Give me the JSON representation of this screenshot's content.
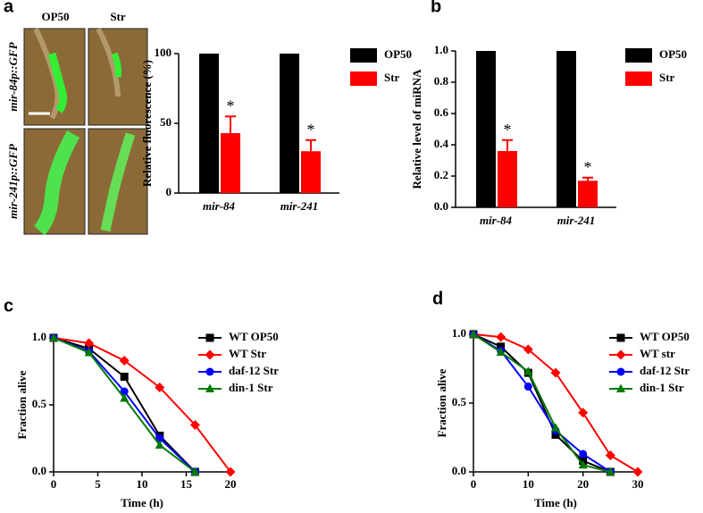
{
  "micrographs": {
    "columns": [
      "OP50",
      "Str"
    ],
    "rows": [
      "mir-84p::GFP",
      "mir-241p::GFP"
    ]
  },
  "chart_data": [
    {
      "type": "bar",
      "panel": "a",
      "ylabel": "Relative fluorescence (%)",
      "categories": [
        "mir-84",
        "mir-241"
      ],
      "ylim": [
        0,
        100
      ],
      "yticks": [
        0,
        50,
        100
      ],
      "series": [
        {
          "name": "OP50",
          "color": "#000000",
          "values": [
            100,
            100
          ]
        },
        {
          "name": "Str",
          "color": "#ff0000",
          "values": [
            43,
            30
          ],
          "errors": [
            12,
            8
          ],
          "significance": [
            "*",
            "*"
          ]
        }
      ]
    },
    {
      "type": "bar",
      "panel": "b",
      "ylabel": "Relative  level of miRNA",
      "categories": [
        "mir-84",
        "mir-241"
      ],
      "ylim": [
        0,
        1
      ],
      "yticks": [
        {
          "value": 0,
          "label": "0.0"
        },
        0.2,
        0.4,
        0.6,
        0.8,
        {
          "value": 1,
          "label": "1.0"
        }
      ],
      "series": [
        {
          "name": "OP50",
          "color": "#000000",
          "values": [
            1,
            1
          ]
        },
        {
          "name": "Str",
          "color": "#ff0000",
          "values": [
            0.36,
            0.17
          ],
          "errors": [
            0.07,
            0.02
          ],
          "significance": [
            "*",
            "*"
          ]
        }
      ]
    },
    {
      "type": "line",
      "panel": "c",
      "xlabel": "Time (h)",
      "ylabel": "Fraction alive",
      "xlim": [
        0,
        20
      ],
      "xticks": [
        0,
        5,
        10,
        15,
        20
      ],
      "ylim": [
        0,
        1
      ],
      "yticks": [
        {
          "value": 0,
          "label": "0.0"
        },
        0.5,
        {
          "value": 1,
          "label": "1.0"
        }
      ],
      "series": [
        {
          "name": "WT OP50",
          "color": "#000000",
          "marker": "square",
          "x": [
            0,
            4,
            8,
            12,
            16
          ],
          "values": [
            1,
            0.92,
            0.71,
            0.27,
            0
          ]
        },
        {
          "name": "WT Str",
          "color": "#ff0000",
          "marker": "diamond",
          "x": [
            0,
            4,
            8,
            12,
            16,
            20
          ],
          "values": [
            1,
            0.96,
            0.83,
            0.63,
            0.35,
            0
          ]
        },
        {
          "name": "daf-12 Str",
          "color": "#0000ff",
          "marker": "circle",
          "x": [
            0,
            4,
            8,
            12,
            16
          ],
          "values": [
            1,
            0.9,
            0.6,
            0.25,
            0
          ]
        },
        {
          "name": "din-1 Str",
          "color": "#007a00",
          "marker": "triangle",
          "x": [
            0,
            4,
            8,
            12,
            16
          ],
          "values": [
            1,
            0.89,
            0.55,
            0.2,
            0
          ]
        }
      ]
    },
    {
      "type": "line",
      "panel": "d",
      "xlabel": "Time (h)",
      "ylabel": "Fraction alive",
      "xlim": [
        0,
        30
      ],
      "xticks": [
        0,
        10,
        20,
        30
      ],
      "ylim": [
        0,
        1
      ],
      "yticks": [
        {
          "value": 0,
          "label": "0.0"
        },
        0.5,
        {
          "value": 1,
          "label": "1.0"
        }
      ],
      "series": [
        {
          "name": "WT OP50",
          "color": "#000000",
          "marker": "square",
          "x": [
            0,
            5,
            10,
            15,
            20,
            25
          ],
          "values": [
            1,
            0.91,
            0.72,
            0.27,
            0.08,
            0
          ]
        },
        {
          "name": "WT str",
          "color": "#ff0000",
          "marker": "diamond",
          "x": [
            0,
            5,
            10,
            15,
            20,
            25,
            30
          ],
          "values": [
            1,
            0.98,
            0.89,
            0.72,
            0.43,
            0.12,
            0
          ]
        },
        {
          "name": "daf-12 Str",
          "color": "#0000ff",
          "marker": "circle",
          "x": [
            0,
            5,
            10,
            15,
            20,
            25
          ],
          "values": [
            1,
            0.88,
            0.62,
            0.3,
            0.13,
            0
          ]
        },
        {
          "name": "din-1 Str",
          "color": "#007a00",
          "marker": "triangle",
          "x": [
            0,
            5,
            10,
            15,
            20,
            25
          ],
          "values": [
            1,
            0.87,
            0.73,
            0.32,
            0.05,
            0
          ]
        }
      ]
    }
  ]
}
